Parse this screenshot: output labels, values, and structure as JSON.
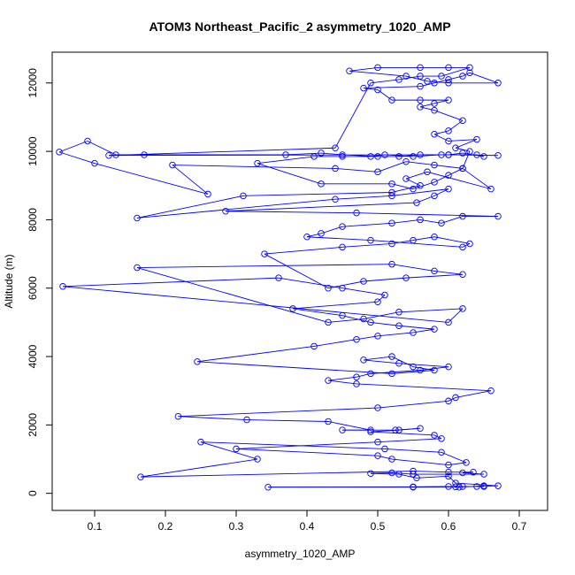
{
  "chart_data": {
    "type": "scatter",
    "title": "ATOM3 Northeast_Pacific_2 asymmetry_1020_AMP",
    "xlabel": "asymmetry_1020_AMP",
    "ylabel": "Altitude (m)",
    "xlim": [
      0.04,
      0.74
    ],
    "ylim": [
      -500,
      12900
    ],
    "xticks": [
      0.1,
      0.2,
      0.3,
      0.4,
      0.5,
      0.6,
      0.7
    ],
    "xtick_labels": [
      "0.1",
      "0.2",
      "0.3",
      "0.4",
      "0.5",
      "0.6",
      "0.7"
    ],
    "yticks": [
      0,
      2000,
      4000,
      6000,
      8000,
      10000,
      12000
    ],
    "ytick_labels": [
      "0",
      "2000",
      "4000",
      "6000",
      "8000",
      "10000",
      "12000"
    ],
    "grid": false,
    "legend": "none",
    "series_color": "#0000ff",
    "marker": "open-circle",
    "connected": true,
    "series": [
      {
        "points": [
          [
            0.65,
            200
          ],
          [
            0.62,
            200
          ],
          [
            0.61,
            190
          ],
          [
            0.55,
            180
          ],
          [
            0.345,
            180
          ],
          [
            0.55,
            190
          ],
          [
            0.6,
            200
          ],
          [
            0.615,
            180
          ],
          [
            0.65,
            220
          ],
          [
            0.64,
            200
          ],
          [
            0.67,
            220
          ],
          [
            0.61,
            300
          ],
          [
            0.6,
            500
          ],
          [
            0.555,
            450
          ],
          [
            0.53,
            560
          ],
          [
            0.49,
            580
          ],
          [
            0.52,
            600
          ],
          [
            0.55,
            560
          ],
          [
            0.65,
            560
          ],
          [
            0.62,
            600
          ],
          [
            0.635,
            620
          ],
          [
            0.6,
            620
          ],
          [
            0.55,
            650
          ],
          [
            0.165,
            480
          ],
          [
            0.33,
            1000
          ],
          [
            0.25,
            1500
          ],
          [
            0.51,
            1300
          ],
          [
            0.59,
            1200
          ],
          [
            0.625,
            900
          ],
          [
            0.6,
            830
          ],
          [
            0.52,
            1000
          ],
          [
            0.5,
            1100
          ],
          [
            0.3,
            1300
          ],
          [
            0.5,
            1500
          ],
          [
            0.59,
            1600
          ],
          [
            0.58,
            1700
          ],
          [
            0.49,
            1800
          ],
          [
            0.53,
            1850
          ],
          [
            0.56,
            1900
          ],
          [
            0.525,
            1850
          ],
          [
            0.45,
            1850
          ],
          [
            0.49,
            1850
          ],
          [
            0.43,
            2100
          ],
          [
            0.315,
            2150
          ],
          [
            0.218,
            2250
          ],
          [
            0.5,
            2500
          ],
          [
            0.6,
            2700
          ],
          [
            0.61,
            2800
          ],
          [
            0.66,
            3000
          ],
          [
            0.47,
            3200
          ],
          [
            0.43,
            3300
          ],
          [
            0.47,
            3400
          ],
          [
            0.49,
            3500
          ],
          [
            0.56,
            3600
          ],
          [
            0.6,
            3700
          ],
          [
            0.53,
            3800
          ],
          [
            0.48,
            3900
          ],
          [
            0.52,
            4000
          ],
          [
            0.55,
            3700
          ],
          [
            0.58,
            3600
          ],
          [
            0.52,
            3500
          ],
          [
            0.245,
            3850
          ],
          [
            0.41,
            4300
          ],
          [
            0.47,
            4500
          ],
          [
            0.5,
            4600
          ],
          [
            0.55,
            4700
          ],
          [
            0.58,
            4800
          ],
          [
            0.53,
            4900
          ],
          [
            0.49,
            5000
          ],
          [
            0.45,
            5200
          ],
          [
            0.38,
            5400
          ],
          [
            0.5,
            5600
          ],
          [
            0.51,
            5800
          ],
          [
            0.45,
            6000
          ],
          [
            0.36,
            6300
          ],
          [
            0.055,
            6050
          ],
          [
            0.6,
            5000
          ],
          [
            0.62,
            5400
          ],
          [
            0.53,
            5300
          ],
          [
            0.48,
            5100
          ],
          [
            0.43,
            5000
          ],
          [
            0.16,
            6600
          ],
          [
            0.52,
            6700
          ],
          [
            0.58,
            6500
          ],
          [
            0.62,
            6400
          ],
          [
            0.54,
            6300
          ],
          [
            0.48,
            6200
          ],
          [
            0.43,
            6000
          ],
          [
            0.34,
            7000
          ],
          [
            0.45,
            7200
          ],
          [
            0.52,
            7300
          ],
          [
            0.55,
            7400
          ],
          [
            0.58,
            7500
          ],
          [
            0.63,
            7300
          ],
          [
            0.62,
            7200
          ],
          [
            0.49,
            7400
          ],
          [
            0.4,
            7500
          ],
          [
            0.42,
            7600
          ],
          [
            0.45,
            7800
          ],
          [
            0.52,
            7900
          ],
          [
            0.56,
            8000
          ],
          [
            0.59,
            7900
          ],
          [
            0.62,
            8100
          ],
          [
            0.67,
            8100
          ],
          [
            0.47,
            8200
          ],
          [
            0.285,
            8250
          ],
          [
            0.555,
            8500
          ],
          [
            0.58,
            8700
          ],
          [
            0.6,
            8900
          ],
          [
            0.52,
            8700
          ],
          [
            0.44,
            8600
          ],
          [
            0.16,
            8050
          ],
          [
            0.31,
            8700
          ],
          [
            0.52,
            8800
          ],
          [
            0.56,
            9000
          ],
          [
            0.54,
            9200
          ],
          [
            0.57,
            9400
          ],
          [
            0.66,
            8900
          ],
          [
            0.62,
            9500
          ],
          [
            0.58,
            9600
          ],
          [
            0.54,
            9700
          ],
          [
            0.5,
            9400
          ],
          [
            0.44,
            9500
          ],
          [
            0.21,
            9600
          ],
          [
            0.26,
            8750
          ],
          [
            0.1,
            9650
          ],
          [
            0.05,
            9980
          ],
          [
            0.09,
            10300
          ],
          [
            0.13,
            9900
          ],
          [
            0.17,
            9900
          ],
          [
            0.37,
            9900
          ],
          [
            0.42,
            9950
          ],
          [
            0.45,
            9900
          ],
          [
            0.5,
            9850
          ],
          [
            0.53,
            9850
          ],
          [
            0.56,
            9900
          ],
          [
            0.6,
            9900
          ],
          [
            0.62,
            9950
          ],
          [
            0.65,
            9850
          ],
          [
            0.64,
            9900
          ],
          [
            0.59,
            9900
          ],
          [
            0.55,
            9850
          ],
          [
            0.51,
            9900
          ],
          [
            0.49,
            9850
          ],
          [
            0.45,
            9850
          ],
          [
            0.41,
            9850
          ],
          [
            0.33,
            9650
          ],
          [
            0.42,
            9050
          ],
          [
            0.52,
            9050
          ],
          [
            0.55,
            8900
          ],
          [
            0.58,
            9100
          ],
          [
            0.6,
            9300
          ],
          [
            0.62,
            9500
          ],
          [
            0.63,
            10000
          ],
          [
            0.61,
            10100
          ],
          [
            0.64,
            10350
          ],
          [
            0.6,
            10300
          ],
          [
            0.58,
            10500
          ],
          [
            0.6,
            10600
          ],
          [
            0.62,
            10900
          ],
          [
            0.58,
            11200
          ],
          [
            0.56,
            11300
          ],
          [
            0.58,
            11400
          ],
          [
            0.6,
            11500
          ],
          [
            0.56,
            11500
          ],
          [
            0.52,
            11500
          ],
          [
            0.5,
            11800
          ],
          [
            0.48,
            11850
          ],
          [
            0.56,
            11900
          ],
          [
            0.58,
            12000
          ],
          [
            0.6,
            12100
          ],
          [
            0.62,
            12200
          ],
          [
            0.63,
            12300
          ],
          [
            0.67,
            12000
          ],
          [
            0.6,
            12000
          ],
          [
            0.57,
            12050
          ],
          [
            0.54,
            12200
          ],
          [
            0.46,
            12350
          ],
          [
            0.5,
            12450
          ],
          [
            0.56,
            12450
          ],
          [
            0.6,
            12450
          ],
          [
            0.63,
            12450
          ],
          [
            0.59,
            12200
          ],
          [
            0.56,
            12200
          ],
          [
            0.53,
            12100
          ],
          [
            0.49,
            12000
          ],
          [
            0.44,
            10100
          ],
          [
            0.12,
            9880
          ],
          [
            0.6,
            9900
          ],
          [
            0.67,
            9880
          ]
        ]
      }
    ]
  }
}
